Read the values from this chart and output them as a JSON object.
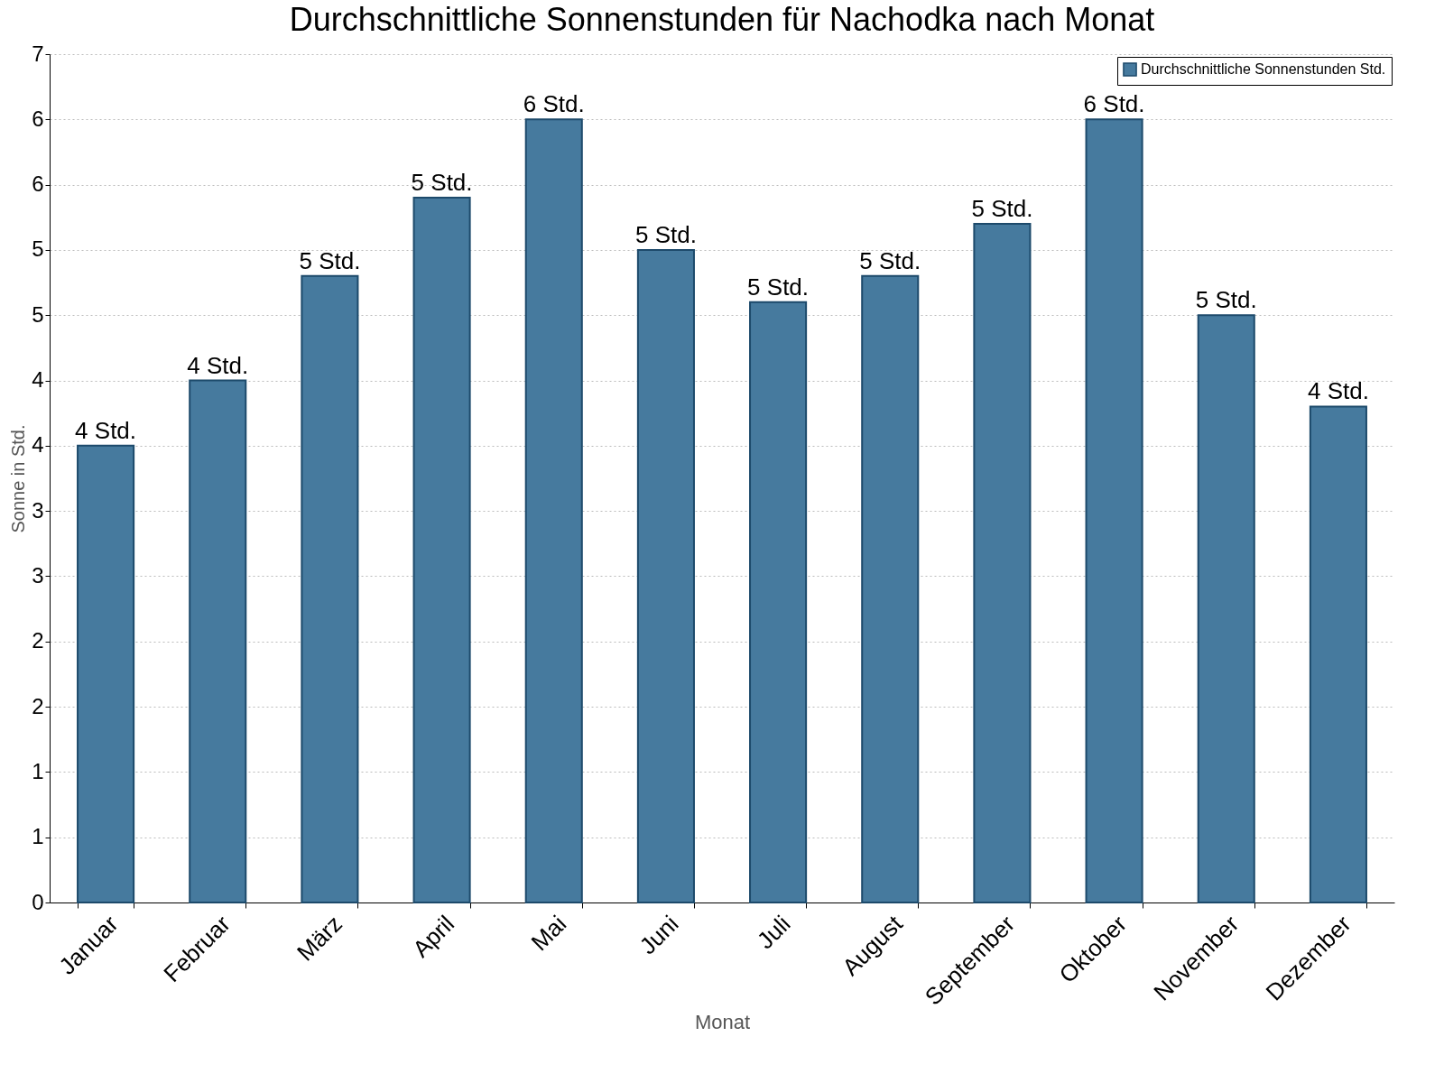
{
  "chart_data": {
    "type": "bar",
    "title": "Durchschnittliche Sonnenstunden für Nachodka nach Monat",
    "xlabel": "Monat",
    "ylabel": "Sonne in Std.",
    "categories": [
      "Januar",
      "Februar",
      "März",
      "April",
      "Mai",
      "Juni",
      "Juli",
      "August",
      "September",
      "Oktober",
      "November",
      "Dezember"
    ],
    "series": [
      {
        "name": "Durchschnittliche Sonnenstunden Std.",
        "color": "#467a9e",
        "values": [
          3.5,
          4.0,
          4.8,
          5.4,
          6.0,
          5.0,
          4.6,
          4.8,
          5.2,
          6.0,
          4.5,
          3.8
        ],
        "value_labels": [
          "4 Std.",
          "4 Std.",
          "5 Std.",
          "5 Std.",
          "6 Std.",
          "5 Std.",
          "5 Std.",
          "5 Std.",
          "5 Std.",
          "6 Std.",
          "5 Std.",
          "4 Std."
        ]
      }
    ],
    "ylim": [
      0,
      6.5
    ],
    "yticks": [
      0,
      {
        "value": 0.5,
        "label": "1"
      },
      1,
      {
        "value": 1.5,
        "label": "2"
      },
      2,
      {
        "value": 2.5,
        "label": "3"
      },
      3,
      {
        "value": 3.5,
        "label": "4"
      },
      4,
      {
        "value": 4.5,
        "label": "5"
      },
      5,
      {
        "value": 5.5,
        "label": "6"
      },
      6,
      {
        "value": 6.5,
        "label": "7"
      }
    ],
    "grid": "y",
    "legend": "top right"
  }
}
